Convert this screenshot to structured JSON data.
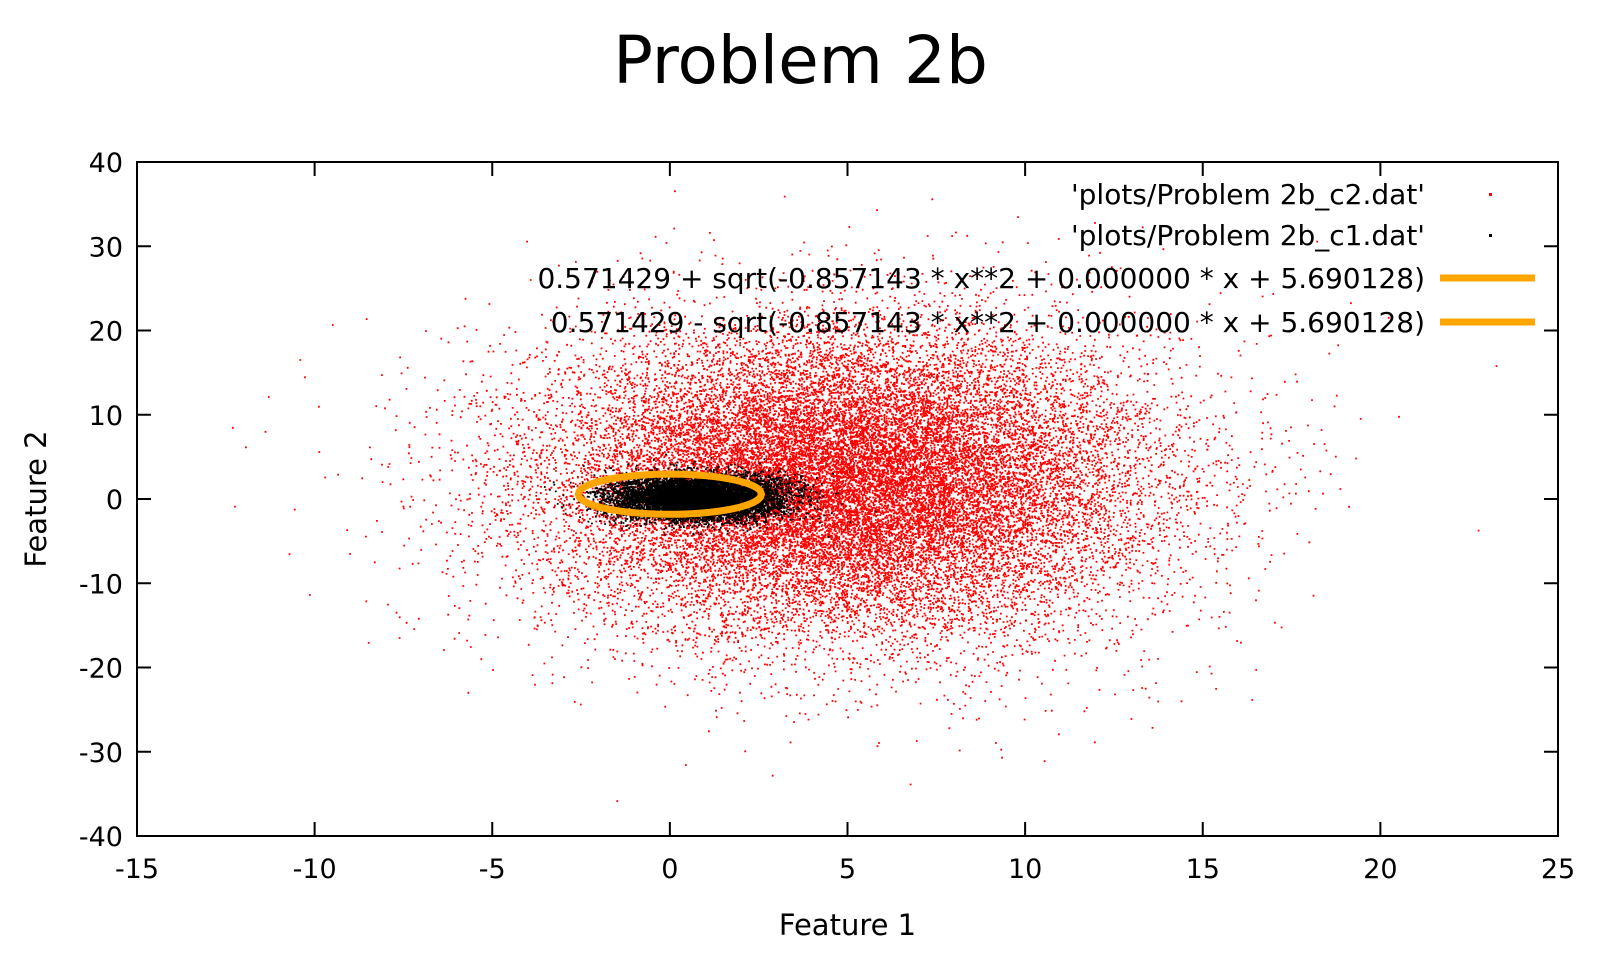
{
  "chart_data": {
    "type": "scatter",
    "title": "Problem 2b",
    "xlabel": "Feature 1",
    "ylabel": "Feature 2",
    "xlim": [
      -15,
      25
    ],
    "ylim": [
      -40,
      40
    ],
    "xticks": [
      -15,
      -10,
      -5,
      0,
      5,
      10,
      15,
      20,
      25
    ],
    "yticks": [
      -40,
      -30,
      -20,
      -10,
      0,
      10,
      20,
      30,
      40
    ],
    "grid": false,
    "legend_position": "top-right",
    "series": [
      {
        "name": "'plots/Problem 2b_c2.dat'",
        "kind": "points",
        "color": "#ff0000",
        "distribution": {
          "mean": [
            5,
            2
          ],
          "std": [
            4.2,
            9.0
          ]
        }
      },
      {
        "name": "'plots/Problem 2b_c1.dat'",
        "kind": "points",
        "color": "#000000",
        "distribution": {
          "mean": [
            0.8,
            0.3
          ],
          "std": [
            1.2,
            1.3
          ]
        }
      },
      {
        "name": "0.571429 + sqrt(-0.857143 * x**2 + 0.000000 * x + 5.690128)",
        "kind": "function",
        "color": "#ffa500",
        "sign": 1,
        "c0": 0.571429,
        "a": -0.857143,
        "b": 0.0,
        "c": 5.690128
      },
      {
        "name": "0.571429 - sqrt(-0.857143 * x**2 + 0.000000 * x + 5.690128)",
        "kind": "function",
        "color": "#ffa500",
        "sign": -1,
        "c0": 0.571429,
        "a": -0.857143,
        "b": 0.0,
        "c": 5.690128
      }
    ]
  }
}
